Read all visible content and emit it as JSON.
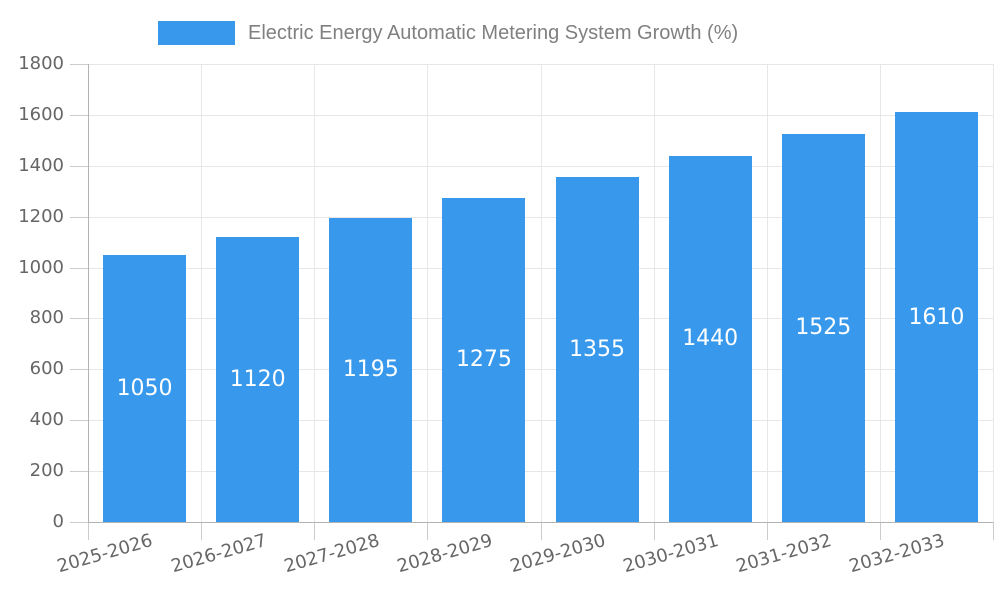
{
  "legend": {
    "label": "Electric Energy Automatic Metering System Growth (%)",
    "swatch_color": "#3899ec"
  },
  "chart_data": {
    "type": "bar",
    "title": "Electric Energy Automatic Metering System Growth (%)",
    "legend_position": "top",
    "categories": [
      "2025-2026",
      "2026-2027",
      "2027-2028",
      "2028-2029",
      "2029-2030",
      "2030-2031",
      "2031-2032",
      "2032-2033"
    ],
    "series": [
      {
        "name": "Electric Energy Automatic Metering System Growth (%)",
        "values": [
          1050,
          1120,
          1195,
          1275,
          1355,
          1440,
          1525,
          1610
        ]
      }
    ],
    "xlabel": "",
    "ylabel": "",
    "ylim": [
      0,
      1800
    ],
    "yticks": [
      0,
      200,
      400,
      600,
      800,
      1000,
      1200,
      1400,
      1600,
      1800
    ],
    "grid": true,
    "value_labels_shown": true,
    "x_label_rotation_deg": -16,
    "colors": {
      "bar": "#3899ec",
      "grid_line": "#e7e7e7",
      "axis_line": "#b3b3b3",
      "tick_mark": "#cccccc",
      "axis_text": "#666666",
      "legend_text": "#808080",
      "value_text": "#ffffff"
    }
  }
}
